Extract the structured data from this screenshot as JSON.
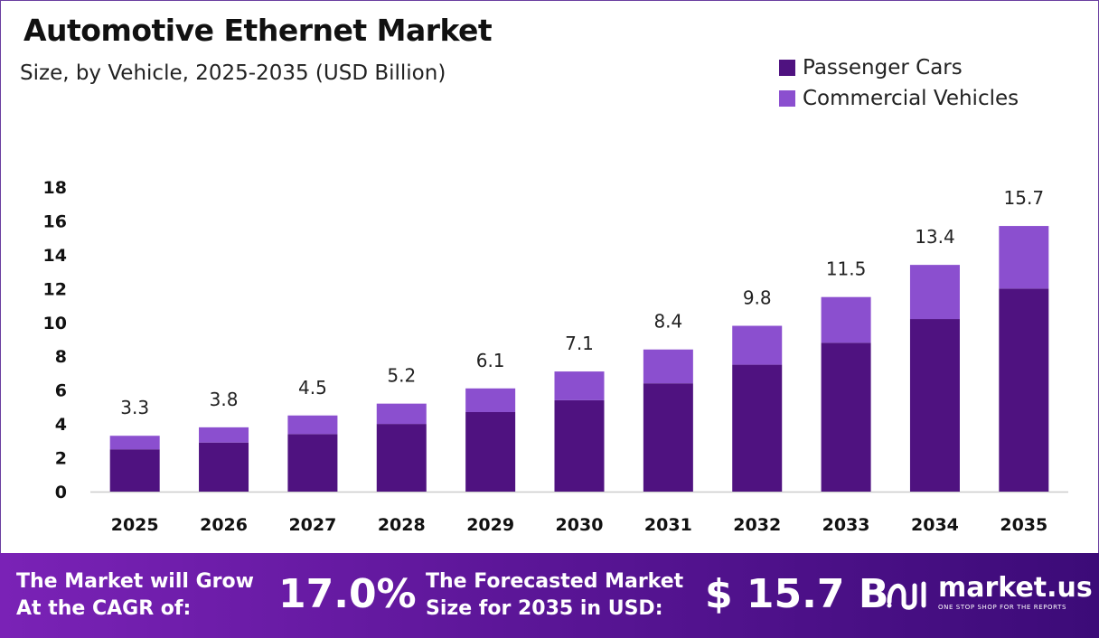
{
  "header": {
    "title": "Automotive Ethernet Market",
    "subtitle": "Size, by Vehicle, 2025-2035 (USD Billion)"
  },
  "colors": {
    "passenger": "#4f1280",
    "commercial": "#8b4fcf",
    "axis": "#cccccc"
  },
  "chart_data": {
    "type": "bar",
    "stacked": true,
    "categories": [
      "2025",
      "2026",
      "2027",
      "2028",
      "2029",
      "2030",
      "2031",
      "2032",
      "2033",
      "2034",
      "2035"
    ],
    "series": [
      {
        "name": "Passenger Cars",
        "values": [
          2.5,
          2.9,
          3.4,
          4.0,
          4.7,
          5.4,
          6.4,
          7.5,
          8.8,
          10.2,
          12.0
        ]
      },
      {
        "name": "Commercial Vehicles",
        "values": [
          0.8,
          0.9,
          1.1,
          1.2,
          1.4,
          1.7,
          2.0,
          2.3,
          2.7,
          3.2,
          3.7
        ]
      }
    ],
    "totals": [
      3.3,
      3.8,
      4.5,
      5.2,
      6.1,
      7.1,
      8.4,
      9.8,
      11.5,
      13.4,
      15.7
    ],
    "total_labels": [
      "3.3",
      "3.8",
      "4.5",
      "5.2",
      "6.1",
      "7.1",
      "8.4",
      "9.8",
      "11.5",
      "13.4",
      "15.7"
    ],
    "yticks": [
      "0",
      "2",
      "4",
      "6",
      "8",
      "10",
      "12",
      "14",
      "16",
      "18"
    ],
    "ylim": [
      0,
      18
    ],
    "grid": false,
    "legend_position": "top-right"
  },
  "footer": {
    "cagr_label_line1": "The Market will Grow",
    "cagr_label_line2": "At the CAGR of:",
    "cagr_value": "17.0%",
    "forecast_label_line1": "The Forecasted Market",
    "forecast_label_line2": "Size for 2035 in USD:",
    "forecast_value": "$ 15.7 B",
    "brand_name": "market.us",
    "brand_tagline": "ONE STOP SHOP FOR THE REPORTS"
  }
}
